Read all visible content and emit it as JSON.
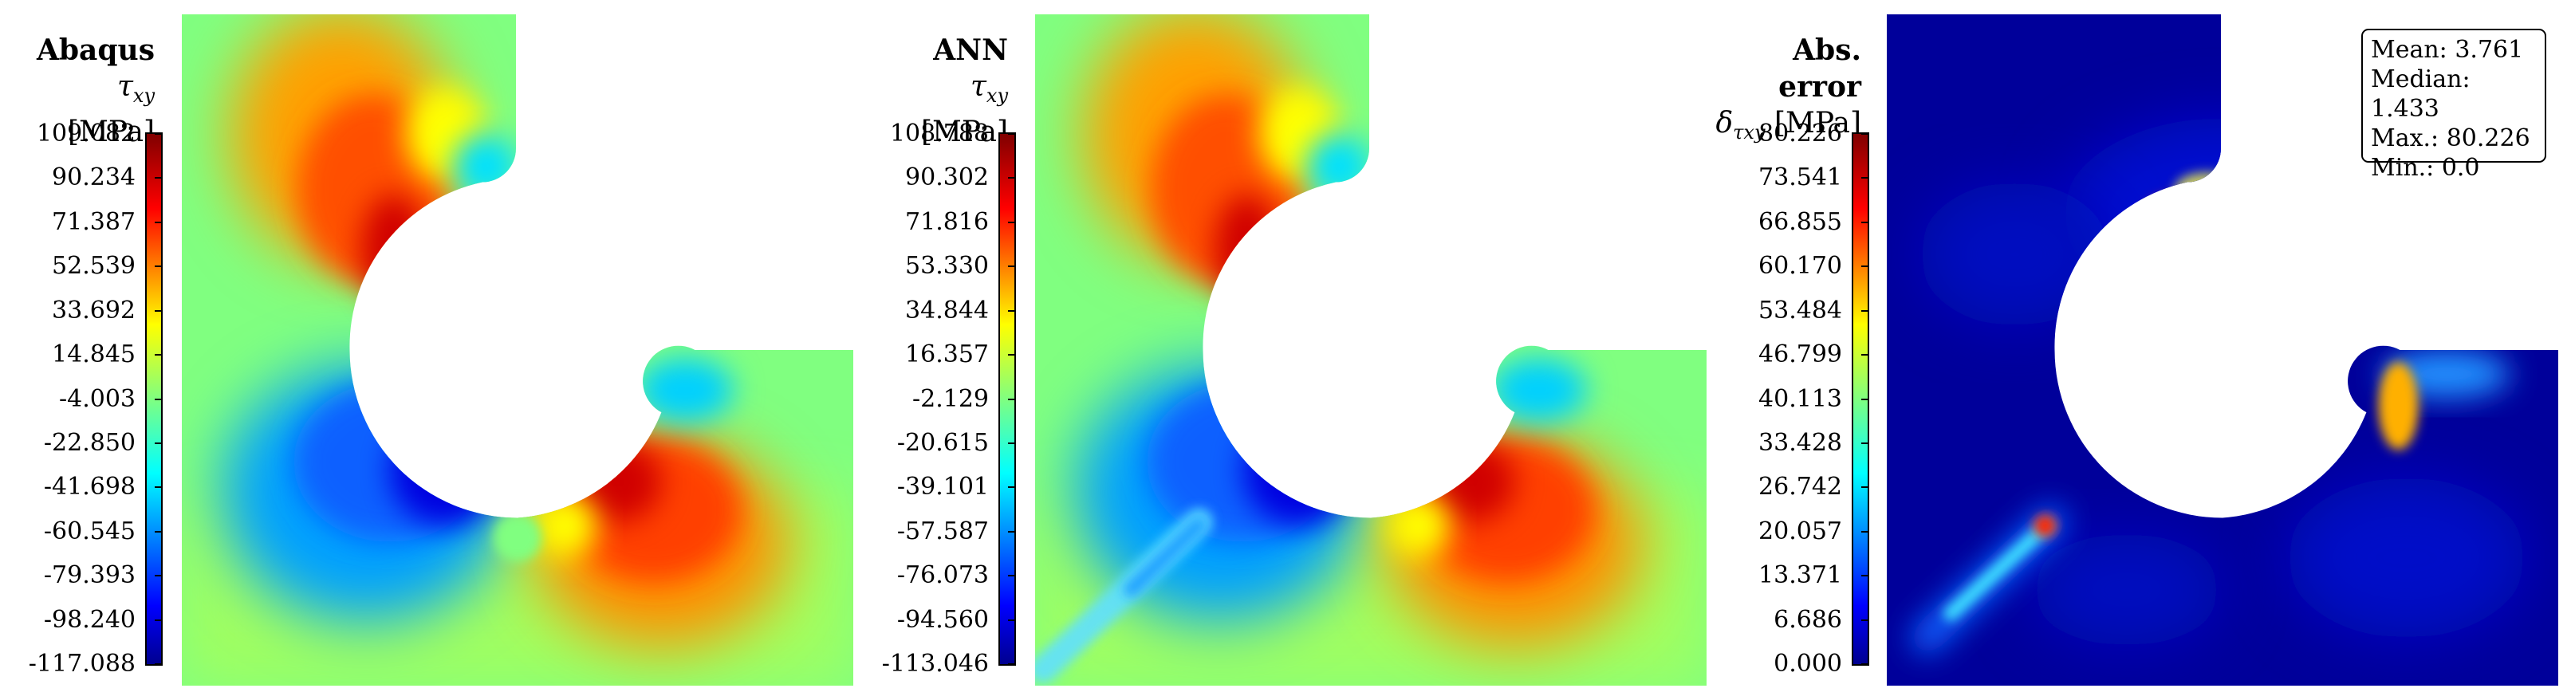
{
  "chart_data": [
    {
      "type": "heatmap",
      "title": "Abaqus",
      "colorbar_label": "τxy [MPa]",
      "quantity": "τ",
      "subscript": "xy",
      "unit": "[MPa]",
      "colormap": "jet",
      "vmin": -117.088,
      "vmax": 109.082,
      "ticks": [
        "109.082",
        "90.234",
        "71.387",
        "52.539",
        "33.692",
        "14.845",
        "-4.003",
        "-22.850",
        "-41.698",
        "-60.545",
        "-79.393",
        "-98.240",
        "-117.088"
      ]
    },
    {
      "type": "heatmap",
      "title": "ANN",
      "colorbar_label": "τxy [MPa]",
      "quantity": "τ",
      "subscript": "xy",
      "unit": "[MPa]",
      "colormap": "jet",
      "vmin": -113.046,
      "vmax": 108.788,
      "ticks": [
        "108.788",
        "90.302",
        "71.816",
        "53.330",
        "34.844",
        "16.357",
        "-2.129",
        "-20.615",
        "-39.101",
        "-57.587",
        "-76.073",
        "-94.560",
        "-113.046"
      ]
    },
    {
      "type": "heatmap",
      "title": "Abs. error",
      "colorbar_label": "δτxy [MPa]",
      "quantity": "δ",
      "subscript": "τxy",
      "unit": "[MPa]",
      "colormap": "jet",
      "vmin": 0.0,
      "vmax": 80.226,
      "ticks": [
        "80.226",
        "73.541",
        "66.855",
        "60.170",
        "53.484",
        "46.799",
        "40.113",
        "33.428",
        "26.742",
        "20.057",
        "13.371",
        "6.686",
        "0.000"
      ],
      "stats": {
        "mean": "Mean: 3.761",
        "median": "Median: 1.433",
        "max": "Max.: 80.226",
        "min": "Min.: 0.0"
      }
    }
  ],
  "colors": {
    "jet_dark_red": "#800000",
    "jet_red": "#ff0000",
    "jet_orange": "#ff8000",
    "jet_yellow": "#ffff00",
    "jet_green": "#80ff80",
    "jet_cyan": "#00ffff",
    "jet_blue": "#0000ff",
    "jet_dark_blue": "#00008f"
  }
}
